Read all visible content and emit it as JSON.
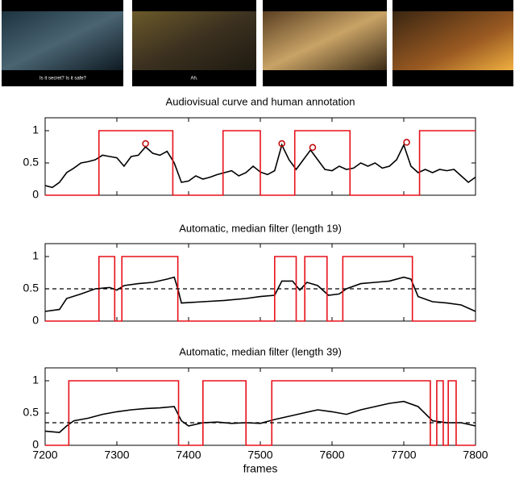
{
  "images": [
    {
      "caption": "Is it secret? Is it safe?"
    },
    {
      "caption": "Ah."
    }
  ],
  "chart_data": [
    {
      "type": "line",
      "title": "Audiovisual curve and human annotation",
      "xlim": [
        7200,
        7800
      ],
      "xticks": [
        7200,
        7300,
        7400,
        7500,
        7600,
        7700,
        7800
      ],
      "xtick_labels": false,
      "ylim": [
        0,
        1.2
      ],
      "yticks": [
        0,
        0.5,
        1
      ],
      "series": [
        {
          "color": "#000000",
          "dash": false,
          "x": [
            7200,
            7210,
            7220,
            7230,
            7240,
            7250,
            7260,
            7270,
            7280,
            7290,
            7300,
            7310,
            7320,
            7330,
            7340,
            7350,
            7360,
            7370,
            7380,
            7390,
            7400,
            7410,
            7420,
            7430,
            7440,
            7450,
            7460,
            7470,
            7480,
            7490,
            7500,
            7510,
            7520,
            7530,
            7540,
            7550,
            7560,
            7570,
            7580,
            7590,
            7600,
            7610,
            7620,
            7630,
            7640,
            7650,
            7660,
            7670,
            7680,
            7690,
            7700,
            7710,
            7720,
            7730,
            7740,
            7750,
            7760,
            7770,
            7780,
            7790,
            7800
          ],
          "values": [
            0.15,
            0.12,
            0.2,
            0.35,
            0.42,
            0.5,
            0.52,
            0.55,
            0.62,
            0.6,
            0.58,
            0.45,
            0.6,
            0.62,
            0.75,
            0.65,
            0.62,
            0.68,
            0.5,
            0.2,
            0.22,
            0.3,
            0.25,
            0.28,
            0.32,
            0.35,
            0.38,
            0.3,
            0.35,
            0.45,
            0.36,
            0.32,
            0.38,
            0.78,
            0.55,
            0.4,
            0.55,
            0.7,
            0.55,
            0.4,
            0.38,
            0.45,
            0.4,
            0.42,
            0.5,
            0.45,
            0.5,
            0.42,
            0.45,
            0.55,
            0.78,
            0.45,
            0.35,
            0.4,
            0.35,
            0.4,
            0.38,
            0.4,
            0.3,
            0.2,
            0.28
          ]
        },
        {
          "color": "#e8101a",
          "dash": false,
          "x": [
            7200,
            7275,
            7275,
            7378,
            7378,
            7448,
            7448,
            7500,
            7500,
            7548,
            7548,
            7625,
            7625,
            7722,
            7722,
            7800
          ],
          "values": [
            0,
            0,
            1,
            1,
            0,
            0,
            1,
            1,
            0,
            0,
            1,
            1,
            0,
            0,
            1,
            1
          ]
        },
        {
          "color": "#c00000",
          "marker": "o",
          "x": [
            7340,
            7530,
            7573,
            7704
          ],
          "values": [
            0.8,
            0.8,
            0.74,
            0.82
          ]
        }
      ]
    },
    {
      "type": "line",
      "title": "Automatic, median filter (length 19)",
      "xlim": [
        7200,
        7800
      ],
      "xticks": [
        7200,
        7300,
        7400,
        7500,
        7600,
        7700,
        7800
      ],
      "xtick_labels": false,
      "ylim": [
        0,
        1.2
      ],
      "yticks": [
        0,
        0.5,
        1
      ],
      "series": [
        {
          "color": "#000000",
          "dash": false,
          "x": [
            7200,
            7220,
            7230,
            7250,
            7270,
            7290,
            7300,
            7310,
            7330,
            7350,
            7370,
            7380,
            7385,
            7390,
            7420,
            7450,
            7480,
            7500,
            7520,
            7530,
            7545,
            7555,
            7565,
            7580,
            7595,
            7610,
            7620,
            7640,
            7660,
            7680,
            7700,
            7710,
            7720,
            7740,
            7760,
            7780,
            7800
          ],
          "values": [
            0.15,
            0.18,
            0.35,
            0.42,
            0.5,
            0.52,
            0.48,
            0.55,
            0.58,
            0.6,
            0.65,
            0.68,
            0.5,
            0.28,
            0.3,
            0.32,
            0.35,
            0.38,
            0.4,
            0.62,
            0.62,
            0.48,
            0.6,
            0.55,
            0.4,
            0.42,
            0.5,
            0.58,
            0.6,
            0.62,
            0.68,
            0.65,
            0.38,
            0.3,
            0.28,
            0.25,
            0.15
          ]
        },
        {
          "color": "#e8101a",
          "dash": false,
          "x": [
            7200,
            7275,
            7275,
            7297,
            7297,
            7307,
            7307,
            7385,
            7385,
            7520,
            7520,
            7550,
            7550,
            7562,
            7562,
            7593,
            7593,
            7615,
            7615,
            7712,
            7712,
            7800
          ],
          "values": [
            0,
            0,
            1,
            1,
            0,
            0,
            1,
            1,
            0,
            0,
            1,
            1,
            0,
            0,
            1,
            1,
            0,
            0,
            1,
            1,
            0,
            0
          ]
        },
        {
          "color": "#000000",
          "dash": true,
          "x": [
            7200,
            7800
          ],
          "values": [
            0.5,
            0.5
          ]
        }
      ]
    },
    {
      "type": "line",
      "title": "Automatic, median filter (length 39)",
      "xlim": [
        7200,
        7800
      ],
      "xticks": [
        7200,
        7300,
        7400,
        7500,
        7600,
        7700,
        7800
      ],
      "xtick_labels": true,
      "xlabel": "frames",
      "ylim": [
        0,
        1.2
      ],
      "yticks": [
        0,
        0.5,
        1
      ],
      "series": [
        {
          "color": "#000000",
          "dash": false,
          "x": [
            7200,
            7220,
            7230,
            7240,
            7260,
            7280,
            7300,
            7320,
            7340,
            7360,
            7380,
            7390,
            7400,
            7420,
            7440,
            7460,
            7480,
            7500,
            7520,
            7540,
            7560,
            7580,
            7600,
            7620,
            7640,
            7660,
            7680,
            7700,
            7720,
            7740,
            7760,
            7780,
            7800
          ],
          "values": [
            0.22,
            0.2,
            0.3,
            0.38,
            0.42,
            0.48,
            0.52,
            0.55,
            0.57,
            0.58,
            0.6,
            0.38,
            0.3,
            0.35,
            0.36,
            0.34,
            0.35,
            0.34,
            0.4,
            0.45,
            0.5,
            0.55,
            0.52,
            0.48,
            0.55,
            0.6,
            0.65,
            0.68,
            0.6,
            0.38,
            0.35,
            0.35,
            0.3
          ]
        },
        {
          "color": "#e8101a",
          "dash": false,
          "x": [
            7200,
            7233,
            7233,
            7386,
            7386,
            7420,
            7420,
            7480,
            7480,
            7516,
            7516,
            7737,
            7737,
            7746,
            7746,
            7755,
            7755,
            7762,
            7762,
            7773,
            7773,
            7800
          ],
          "values": [
            0,
            0,
            1,
            1,
            0,
            0,
            1,
            1,
            0,
            0,
            1,
            1,
            0,
            0,
            1,
            1,
            0,
            0,
            1,
            1,
            0,
            0
          ]
        },
        {
          "color": "#000000",
          "dash": true,
          "x": [
            7200,
            7800
          ],
          "values": [
            0.35,
            0.35
          ]
        }
      ]
    }
  ]
}
